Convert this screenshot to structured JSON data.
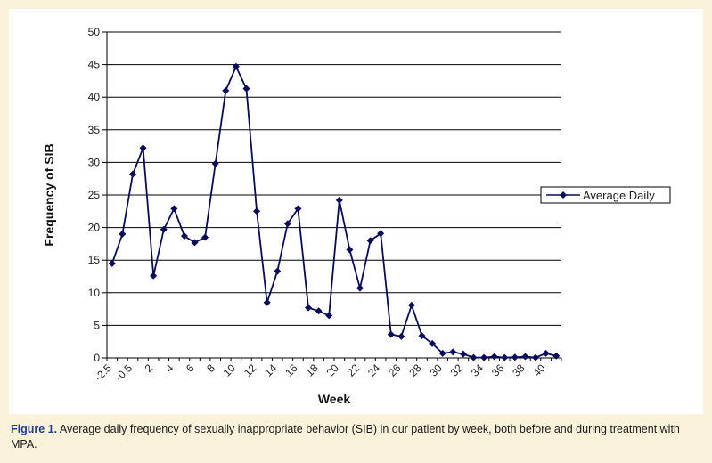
{
  "chart_data": {
    "type": "line",
    "title": "",
    "xlabel": "Week",
    "ylabel": "Frequency of SIB",
    "ylim": [
      0,
      50
    ],
    "y_ticks": [
      0,
      5,
      10,
      15,
      20,
      25,
      30,
      35,
      40,
      45,
      50
    ],
    "x_tick_labels": [
      "-2.5",
      "-0.5",
      "2",
      "4",
      "6",
      "8",
      "10",
      "12",
      "14",
      "16",
      "18",
      "20",
      "22",
      "24",
      "26",
      "28",
      "30",
      "32",
      "34",
      "36",
      "38",
      "40"
    ],
    "grid": true,
    "legend_position": "right",
    "series": [
      {
        "name": "Average Daily",
        "color": "#0a0a5a",
        "values": [
          14.5,
          19,
          28.2,
          32.2,
          12.6,
          19.7,
          22.9,
          18.7,
          17.7,
          18.5,
          29.8,
          41,
          44.7,
          41.3,
          22.5,
          8.5,
          13.3,
          20.6,
          22.9,
          7.7,
          7.2,
          6.5,
          24.2,
          16.6,
          10.7,
          18,
          19.1,
          3.6,
          3.3,
          8.1,
          3.4,
          2.2,
          0.7,
          0.9,
          0.6,
          0.05,
          0.05,
          0.2,
          0.05,
          0.1,
          0.2,
          0.05,
          0.7,
          0.3
        ]
      }
    ]
  },
  "caption": {
    "label": "Figure 1.",
    "text": " Average daily frequency of sexually inappropriate behavior (SIB) in our patient by week, both before and during treatment with MPA."
  }
}
